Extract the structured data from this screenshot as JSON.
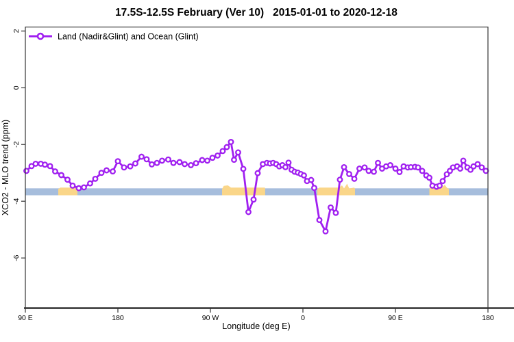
{
  "title": "17.5S-12.5S February (Ver 10)   2015-01-01 to 2020-12-18",
  "legend": {
    "label": "Land (Nadir&Glint) and Ocean (Glint)",
    "position": "top-left"
  },
  "axes": {
    "xlabel": "Longitude (deg E)",
    "ylabel": "XCO2 - MLO trend (ppm)"
  },
  "colors": {
    "series_purple": "#A020F0",
    "marker_fill": "#ffffff",
    "ocean_band_blue": "#A6BDDC",
    "land_patch_orange": "#FAD689",
    "axis": "#333333"
  },
  "chart_data": {
    "type": "line",
    "title": "17.5S-12.5S February (Ver 10)   2015-01-01 to 2020-12-18",
    "xlabel": "Longitude (deg E)",
    "ylabel": "XCO2 - MLO trend (ppm)",
    "x_axis_note": "x = degrees eastward along axis starting at 90E; axis wraps 90E>180>90W>0>90E>180",
    "xlim_deg": [
      0,
      450
    ],
    "ylim": [
      -7.78,
      2.14
    ],
    "grid": false,
    "x_ticks": {
      "positions_deg": [
        0,
        90,
        180,
        270,
        360,
        450
      ],
      "labels": [
        "90 E",
        "180",
        "90 W",
        "0",
        "90 E",
        "180"
      ]
    },
    "y_ticks": {
      "positions": [
        2,
        0,
        -2,
        -4,
        -6
      ],
      "labels": [
        "2",
        "0",
        "-2",
        "-4",
        "-6"
      ]
    },
    "series": [
      {
        "name": "Land (Nadir&Glint) and Ocean (Glint)",
        "color": "#A020F0",
        "marker": "open-circle",
        "points": [
          [
            1,
            -2.93
          ],
          [
            6,
            -2.76
          ],
          [
            10,
            -2.68
          ],
          [
            15,
            -2.68
          ],
          [
            19,
            -2.71
          ],
          [
            24,
            -2.76
          ],
          [
            29,
            -2.95
          ],
          [
            35,
            -3.08
          ],
          [
            41,
            -3.24
          ],
          [
            46,
            -3.45
          ],
          [
            52,
            -3.54
          ],
          [
            57,
            -3.51
          ],
          [
            63,
            -3.37
          ],
          [
            68,
            -3.21
          ],
          [
            74,
            -3.0
          ],
          [
            79,
            -2.91
          ],
          [
            85,
            -2.95
          ],
          [
            90,
            -2.59
          ],
          [
            96,
            -2.81
          ],
          [
            102,
            -2.77
          ],
          [
            107,
            -2.67
          ],
          [
            113,
            -2.43
          ],
          [
            118,
            -2.52
          ],
          [
            123,
            -2.7
          ],
          [
            128,
            -2.65
          ],
          [
            133,
            -2.57
          ],
          [
            139,
            -2.53
          ],
          [
            144,
            -2.65
          ],
          [
            150,
            -2.62
          ],
          [
            155,
            -2.69
          ],
          [
            161,
            -2.73
          ],
          [
            166,
            -2.66
          ],
          [
            172,
            -2.55
          ],
          [
            177,
            -2.57
          ],
          [
            182,
            -2.47
          ],
          [
            187,
            -2.39
          ],
          [
            192,
            -2.23
          ],
          [
            196,
            -2.09
          ],
          [
            200,
            -1.91
          ],
          [
            203,
            -2.54
          ],
          [
            207,
            -2.28
          ],
          [
            212,
            -2.86
          ],
          [
            217,
            -4.38
          ],
          [
            222,
            -3.94
          ],
          [
            226,
            -3.01
          ],
          [
            231,
            -2.69
          ],
          [
            235,
            -2.65
          ],
          [
            238,
            -2.67
          ],
          [
            241,
            -2.65
          ],
          [
            244,
            -2.69
          ],
          [
            247,
            -2.77
          ],
          [
            250,
            -2.73
          ],
          [
            253,
            -2.8
          ],
          [
            256,
            -2.64
          ],
          [
            259,
            -2.89
          ],
          [
            262,
            -2.96
          ],
          [
            265,
            -2.99
          ],
          [
            268,
            -3.04
          ],
          [
            271,
            -3.09
          ],
          [
            274,
            -3.29
          ],
          [
            278,
            -3.25
          ],
          [
            281,
            -3.53
          ],
          [
            286,
            -4.66
          ],
          [
            292,
            -5.06
          ],
          [
            297,
            -4.22
          ],
          [
            302,
            -4.41
          ],
          [
            306,
            -3.24
          ],
          [
            310,
            -2.8
          ],
          [
            315,
            -3.04
          ],
          [
            320,
            -3.21
          ],
          [
            325,
            -2.85
          ],
          [
            330,
            -2.81
          ],
          [
            334,
            -2.93
          ],
          [
            339,
            -2.96
          ],
          [
            343,
            -2.65
          ],
          [
            347,
            -2.85
          ],
          [
            351,
            -2.77
          ],
          [
            355,
            -2.73
          ],
          [
            360,
            -2.85
          ],
          [
            364,
            -2.97
          ],
          [
            368,
            -2.77
          ],
          [
            372,
            -2.81
          ],
          [
            375,
            -2.8
          ],
          [
            379,
            -2.79
          ],
          [
            382,
            -2.81
          ],
          [
            386,
            -2.93
          ],
          [
            390,
            -3.09
          ],
          [
            393,
            -3.17
          ],
          [
            396,
            -3.45
          ],
          [
            400,
            -3.49
          ],
          [
            403,
            -3.45
          ],
          [
            406,
            -3.29
          ],
          [
            410,
            -3.05
          ],
          [
            413,
            -2.93
          ],
          [
            416,
            -2.81
          ],
          [
            420,
            -2.77
          ],
          [
            423,
            -2.85
          ],
          [
            426,
            -2.57
          ],
          [
            430,
            -2.81
          ],
          [
            433,
            -2.89
          ],
          [
            436,
            -2.77
          ],
          [
            440,
            -2.69
          ],
          [
            444,
            -2.81
          ],
          [
            448,
            -2.93
          ]
        ]
      }
    ],
    "ocean_band": {
      "color": "#A6BDDC",
      "x_min_deg": 0,
      "x_max_deg": 450,
      "y_min": -3.79,
      "y_max": -3.545
    },
    "land_patches": {
      "color": "#FAD689",
      "base_value": -3.79,
      "top_profiles_deg_val": [
        [
          [
            32,
            -3.57
          ],
          [
            34,
            -3.52
          ],
          [
            43,
            -3.52
          ],
          [
            46,
            -3.44
          ],
          [
            48,
            -3.43
          ],
          [
            50,
            -3.55
          ],
          [
            50.7,
            -3.57
          ]
        ],
        [
          [
            191.3,
            -3.57
          ],
          [
            193,
            -3.46
          ],
          [
            197,
            -3.44
          ],
          [
            200,
            -3.52
          ],
          [
            233,
            -3.52
          ],
          [
            233.3,
            -3.57
          ]
        ],
        [
          [
            284,
            -3.57
          ],
          [
            286,
            -3.52
          ],
          [
            305,
            -3.52
          ],
          [
            308,
            -3.44
          ],
          [
            310,
            -3.55
          ],
          [
            313,
            -3.38
          ],
          [
            315,
            -3.55
          ],
          [
            320,
            -3.52
          ],
          [
            320.7,
            -3.57
          ]
        ],
        [
          [
            393,
            -3.57
          ],
          [
            395,
            -3.4
          ],
          [
            398,
            -3.37
          ],
          [
            401,
            -3.52
          ],
          [
            405,
            -3.52
          ],
          [
            408,
            -3.42
          ],
          [
            410,
            -3.52
          ],
          [
            412,
            -3.57
          ]
        ]
      ]
    }
  }
}
